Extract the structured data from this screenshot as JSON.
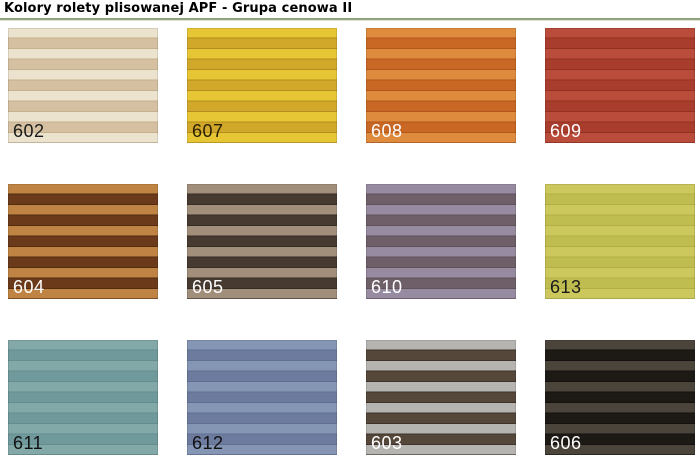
{
  "page": {
    "title": "Kolory rolety plisowanej APF - Grupa cenowa II",
    "divider_color": "#91a37d",
    "divider_edge_color": "#dfe5d8",
    "background_color": "#ffffff"
  },
  "swatches": [
    {
      "code": "602",
      "colors": {
        "light": "#ece3ce",
        "dark": "#d5c1a2",
        "line": "#c7b08c",
        "text": "#1a1a1a"
      }
    },
    {
      "code": "607",
      "colors": {
        "light": "#e7c636",
        "dark": "#d2a82b",
        "line": "#b18e1f",
        "text": "#2a2000"
      }
    },
    {
      "code": "608",
      "colors": {
        "light": "#de8b3e",
        "dark": "#c96824",
        "line": "#b2561c",
        "text": "#ffffff"
      }
    },
    {
      "code": "609",
      "colors": {
        "light": "#b94c3a",
        "dark": "#a93d2d",
        "line": "#943120",
        "text": "#ffffff"
      }
    },
    {
      "code": "604",
      "colors": {
        "light": "#bf8443",
        "dark": "#6b3a1b",
        "line": "#532c10",
        "text": "#ffffff"
      }
    },
    {
      "code": "605",
      "colors": {
        "light": "#a18e7b",
        "dark": "#463a31",
        "line": "#352c23",
        "text": "#ffffff"
      }
    },
    {
      "code": "610",
      "colors": {
        "light": "#978ba1",
        "dark": "#6f5f68",
        "line": "#61525a",
        "text": "#ffffff"
      }
    },
    {
      "code": "613",
      "colors": {
        "light": "#ccc85d",
        "dark": "#c0bd50",
        "line": "#b2af45",
        "text": "#1a1a1a"
      }
    },
    {
      "code": "611",
      "colors": {
        "light": "#82a8a8",
        "dark": "#70999c",
        "line": "#648d90",
        "text": "#111111"
      }
    },
    {
      "code": "612",
      "colors": {
        "light": "#8595b4",
        "dark": "#6c7b9e",
        "line": "#606f92",
        "text": "#111111"
      }
    },
    {
      "code": "603",
      "colors": {
        "light": "#b5b4b0",
        "dark": "#55473a",
        "line": "#3d332a",
        "text": "#ffffff"
      }
    },
    {
      "code": "606",
      "colors": {
        "light": "#4a443b",
        "dark": "#1d1915",
        "line": "#141110",
        "text": "#ffffff"
      }
    }
  ]
}
